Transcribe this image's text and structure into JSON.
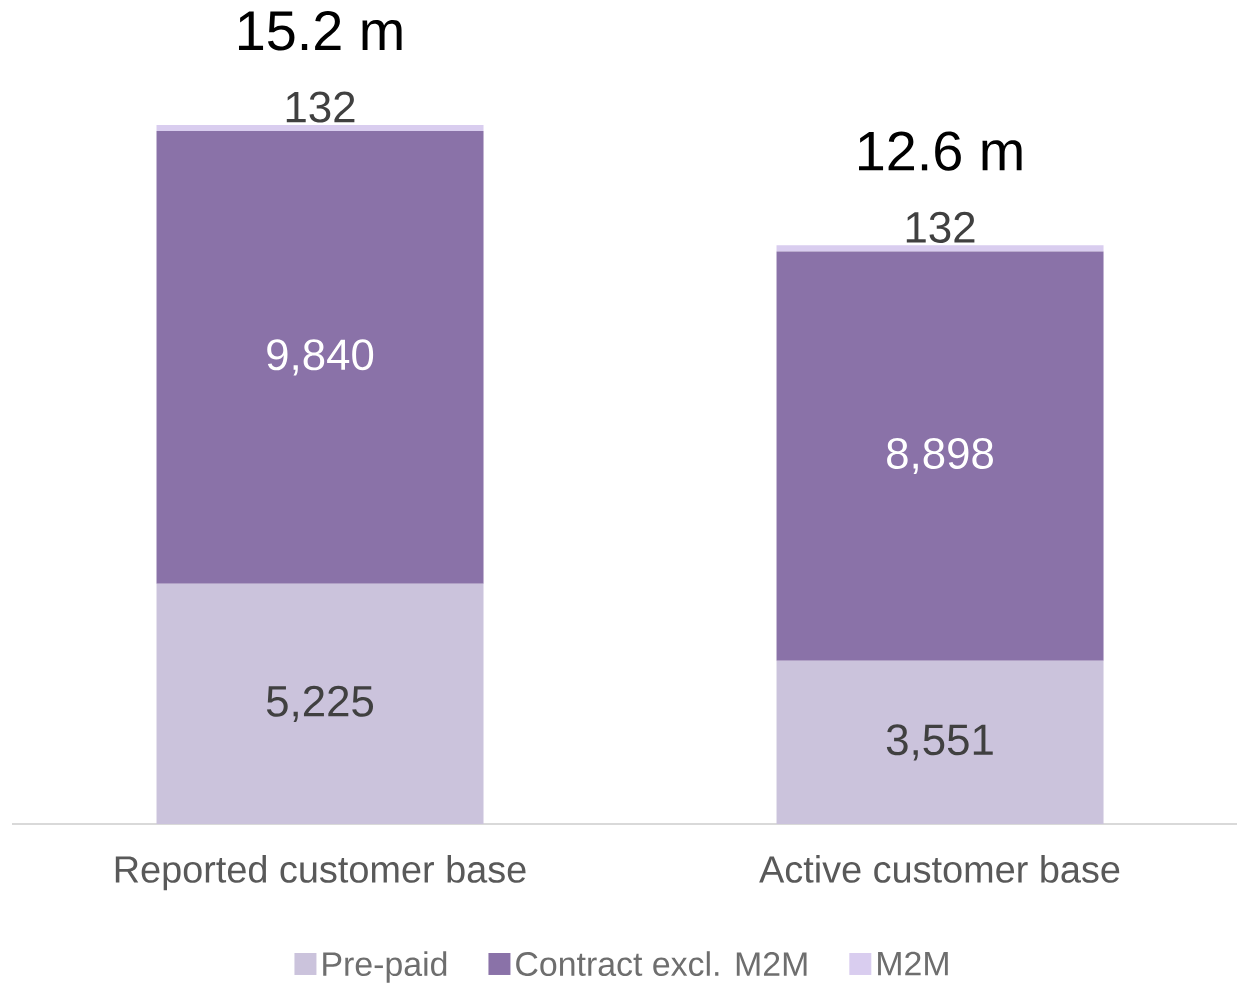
{
  "chart_data": {
    "type": "bar",
    "stacked": true,
    "legend": "bottom",
    "categories": [
      "Reported customer base",
      "Active customer base"
    ],
    "series": [
      {
        "name": "Pre-paid",
        "color": "#cbc3dc",
        "values": [
          5225,
          3551
        ],
        "value_labels": [
          "5,225",
          "3,551"
        ]
      },
      {
        "name": "Contract excl. M2M",
        "color": "#8a72a8",
        "values": [
          9840,
          8898
        ],
        "value_labels": [
          "9,840",
          "8,898"
        ]
      },
      {
        "name": "M2M",
        "color": "#d9cdef",
        "values": [
          132,
          132
        ],
        "value_labels": [
          "132",
          "132"
        ]
      }
    ],
    "totals": [
      "15.2 m",
      "12.6 m"
    ]
  }
}
